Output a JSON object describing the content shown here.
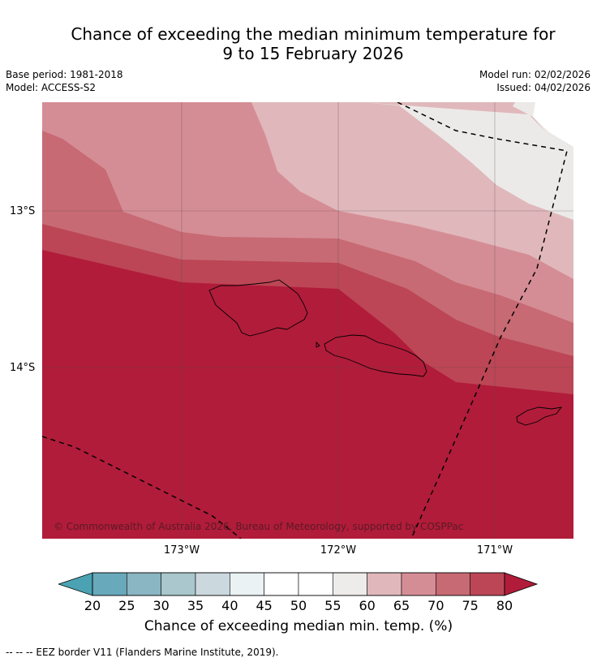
{
  "title": {
    "line1": "Chance of exceeding the median minimum temperature for",
    "line2": "9 to 15 February 2026"
  },
  "meta": {
    "base_period": "Base period: 1981-2018",
    "model": "Model: ACCESS-S2",
    "model_run": "Model run: 02/02/2026",
    "issued": "Issued: 04/02/2026"
  },
  "map": {
    "lat_labels": [
      "13°S",
      "14°S"
    ],
    "lon_labels": [
      "173°W",
      "172°W",
      "171°W"
    ],
    "copyright": "© Commonwealth of Australia 2026, Bureau of Meteorology, supported by COSPPac"
  },
  "colors": {
    "c60": "#eceae8",
    "c65": "#e0b8bc",
    "c70": "#d58d95",
    "c75": "#c76a74",
    "c80": "#bc4655",
    "c80plus": "#b11c3a"
  },
  "colorbar": {
    "ticks": [
      "20",
      "25",
      "30",
      "35",
      "40",
      "45",
      "50",
      "55",
      "60",
      "65",
      "70",
      "75",
      "80"
    ],
    "colors": [
      "#68a9bb",
      "#8ab5c2",
      "#a9c7cc",
      "#cbd9de",
      "#eaf2f3",
      "#ffffff",
      "#ffffff",
      "#edeceb",
      "#e0b8bc",
      "#d58d95",
      "#c76a74",
      "#bc4655"
    ],
    "under_color": "#4aa2b2",
    "over_color": "#b11c3a",
    "label": "Chance of exceeding median min. temp. (%)"
  },
  "footer": {
    "text": "--  --  -- EEZ border V11 (Flanders Marine Institute, 2019)."
  }
}
